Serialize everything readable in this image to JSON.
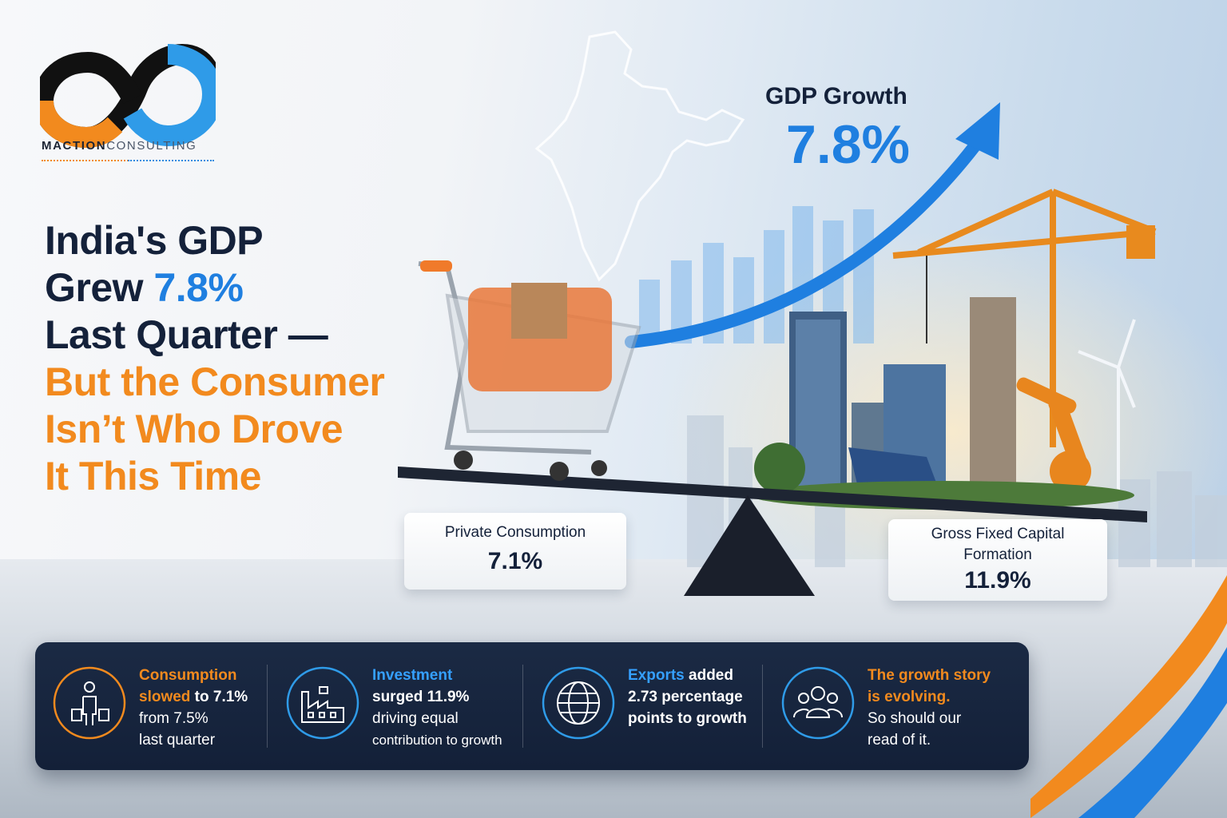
{
  "brand": {
    "name_bold": "MACTION",
    "name_light": "CONSULTING"
  },
  "headline": {
    "line1": "India's GDP",
    "line2_start": "Grew ",
    "line2_highlight": "7.8%",
    "line3": "Last Quarter —",
    "line4": "But the Consumer",
    "line5": "Isn’t Who Drove",
    "line6": "It This Time"
  },
  "gdp": {
    "label": "GDP Growth",
    "value": "7.8%"
  },
  "seesaw": {
    "left": {
      "label": "Private Consumption",
      "value": "7.1%"
    },
    "right": {
      "label_line1": "Gross Fixed Capital",
      "label_line2": "Formation",
      "value": "11.9%"
    }
  },
  "cards": [
    {
      "icon": "shopper-icon",
      "l1_hl": "Consumption",
      "l2_hl": "slowed",
      "l2_rest": " to 7.1%",
      "l3": "from 7.5%",
      "l4": "last quarter"
    },
    {
      "icon": "factory-icon",
      "l1_hl": "Investment",
      "l2": "surged 11.9%",
      "l3": "driving equal",
      "l4": "contribution to growth"
    },
    {
      "icon": "globe-icon",
      "l1_hl": "Exports",
      "l1_rest": " added",
      "l2": "2.73 percentage",
      "l3": "points to growth"
    },
    {
      "icon": "people-icon",
      "l1_hl": "The growth story",
      "l2_hl": "is evolving.",
      "l3": "So should our",
      "l4": "read of it."
    }
  ],
  "colors": {
    "navy": "#14213a",
    "blue": "#1f7fe0",
    "orange": "#f28a1e",
    "panel": "#1b2a44"
  }
}
